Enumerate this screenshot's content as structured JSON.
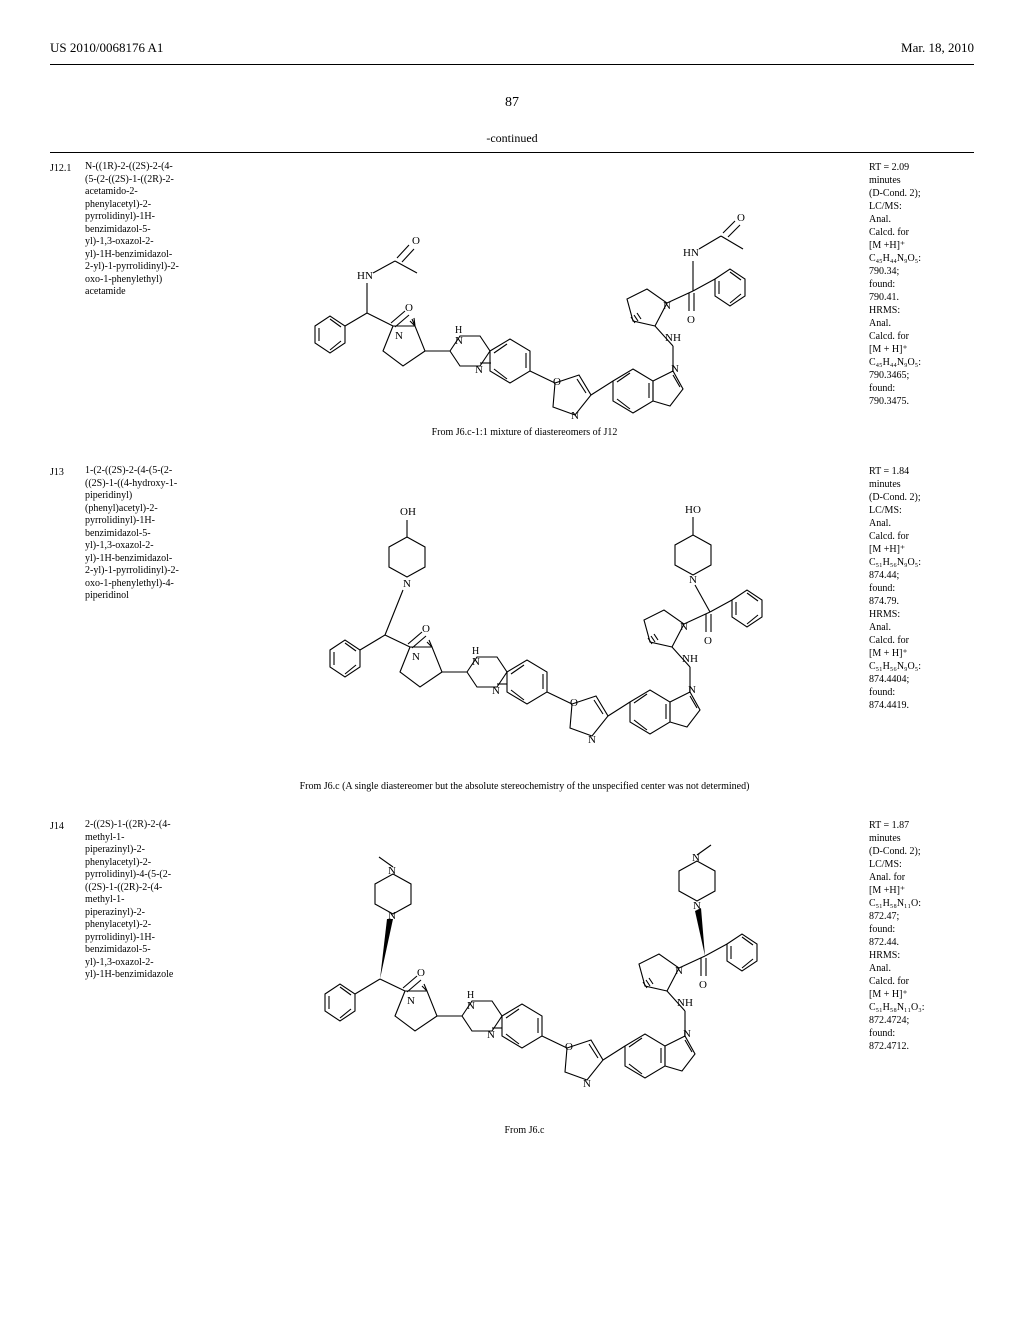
{
  "header": {
    "pub_number": "US 2010/0068176 A1",
    "pub_date": "Mar. 18, 2010"
  },
  "page_num": "87",
  "continued_label": "-continued",
  "entries": [
    {
      "id": "J12.1",
      "name": "N-((1R)-2-((2S)-2-(4-(5-(2-((2S)-1-((2R)-2-acetamido-2-phenylacetyl)-2-pyrrolidinyl)-1H-benzimidazol-5-yl)-1,3-oxazol-2-yl)-1H-benzimidazol-2-yl)-1-pyrrolidinyl)-2-oxo-1-phenylethyl) acetamide",
      "caption": "From J6.c-1:1 mixture of diastereomers of J12",
      "data_lines": [
        "RT = 2.09",
        "minutes",
        "(D-Cond. 2);",
        "LC/MS:",
        "Anal.",
        "Calcd. for",
        "[M +H]⁺",
        "C₄₅H₄₄N₉O₅:",
        "790.34;",
        "found:",
        "790.41.",
        "HRMS:",
        "Anal.",
        "Calcd. for",
        "[M + H]⁺",
        "C₄₅H₄₄N₉O₅:",
        "790.3465;",
        "found:",
        "790.3475."
      ]
    },
    {
      "id": "J13",
      "name": "1-(2-((2S)-2-(4-(5-(2-((2S)-1-((4-hydroxy-1-piperidinyl) (phenyl)acetyl)-2-pyrrolidinyl)-1H-benzimidazol-5-yl)-1,3-oxazol-2-yl)-1H-benzimidazol-2-yl)-1-pyrrolidinyl)-2-oxo-1-phenylethyl)-4-piperidinol",
      "caption": "From J6.c (A single diastereomer but the absolute stereochemistry of the unspecified center was not determined)",
      "data_lines": [
        "RT = 1.84",
        "minutes",
        "(D-Cond. 2);",
        "LC/MS:",
        "Anal.",
        "Calcd. for",
        "[M +H]⁺",
        "C₅₁H₅₆N₉O₅:",
        "874.44;",
        "found:",
        "874.79.",
        "HRMS:",
        "Anal.",
        "Calcd. for",
        "[M + H]⁺",
        "C₅₁H₅₆N₉O₅:",
        "874.4404;",
        "found:",
        "874.4419."
      ]
    },
    {
      "id": "J14",
      "name": "2-((2S)-1-((2R)-2-(4-methyl-1-piperazinyl)-2-phenylacetyl)-2-pyrrolidinyl)-4-(5-(2-((2S)-1-((2R)-2-(4-methyl-1-piperazinyl)-2-phenylacetyl)-2-pyrrolidinyl)-1H-benzimidazol-5-yl)-1,3-oxazol-2-yl)-1H-benzimidazole",
      "caption": "From J6.c",
      "data_lines": [
        "RT = 1.87",
        "minutes",
        "(D-Cond. 2);",
        "LC/MS:",
        "Anal. for",
        "[M +H]⁺",
        "C₅₁H₅₈N₁₁O:",
        "872.47;",
        "found:",
        "872.44.",
        "HRMS:",
        "Anal.",
        "Calcd. for",
        "[M + H]⁺",
        "C₅₁H₅₈N₁₁O₃:",
        "872.4724;",
        "found:",
        "872.4712."
      ]
    }
  ],
  "style": {
    "background_color": "#ffffff",
    "text_color": "#000000",
    "stroke_color": "#000000",
    "font_family": "Times New Roman",
    "body_fontsize": 11,
    "small_fontsize": 10,
    "svg_stroke_width": 1.1
  }
}
